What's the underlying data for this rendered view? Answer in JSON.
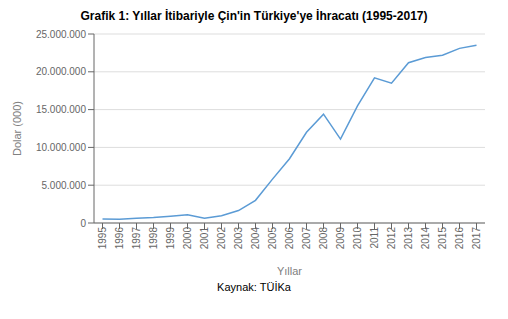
{
  "chart_data": {
    "type": "line",
    "title": "Grafik 1: Yıllar İtibariyle Çin'in Türkiye'ye İhracatı (1995-2017)",
    "x_label": "Yıllar",
    "y_label": "Dolar (000)",
    "annotation": "Kaynak: TÜİKa",
    "x": [
      1995,
      1996,
      1997,
      1998,
      1999,
      2000,
      2001,
      2002,
      2003,
      2004,
      2005,
      2006,
      2007,
      2008,
      2009,
      2010,
      2011,
      2012,
      2013,
      2014,
      2015,
      2016,
      2017
    ],
    "values": [
      540000,
      480000,
      630000,
      720000,
      900000,
      1100000,
      620000,
      950000,
      1650000,
      3000000,
      5800000,
      8500000,
      12000000,
      14400000,
      11100000,
      15500000,
      19200000,
      18500000,
      21200000,
      21900000,
      22200000,
      23100000,
      23500000
    ],
    "color": "#5b9bd5",
    "xlim": [
      1994.5,
      2017.5
    ],
    "xticks": [
      1995,
      1996,
      1997,
      1998,
      1999,
      2000,
      2001,
      2002,
      2003,
      2004,
      2005,
      2006,
      2007,
      2008,
      2009,
      2010,
      2011,
      2012,
      2013,
      2014,
      2015,
      2016,
      2017
    ],
    "ylim": [
      0,
      25000000
    ],
    "yticks": [
      0,
      {
        "value": 5000000,
        "label": "5.000.000"
      },
      {
        "value": 10000000,
        "label": "10.000.000"
      },
      {
        "value": 15000000,
        "label": "15.000.000"
      },
      {
        "value": 20000000,
        "label": "20.000.000"
      },
      {
        "value": 25000000,
        "label": "25.000.000"
      }
    ],
    "grid": "y"
  }
}
